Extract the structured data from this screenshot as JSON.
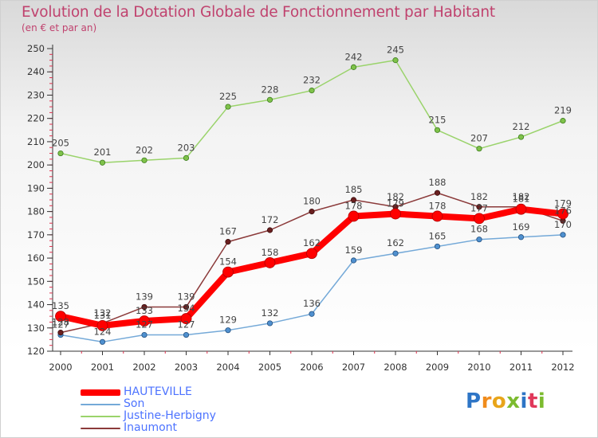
{
  "title": "Evolution de la Dotation Globale de Fonctionnement par Habitant",
  "subtitle": "(en € et par an)",
  "logo": {
    "letters": [
      "P",
      "r",
      "o",
      "x",
      "i",
      "t",
      "i"
    ],
    "colors": [
      "#2e75c6",
      "#f08c1c",
      "#e8a51a",
      "#7cbb2f",
      "#2e75c6",
      "#e0385a",
      "#7cbb2f"
    ]
  },
  "chart_data": {
    "type": "line",
    "categories": [
      "2000",
      "2001",
      "2002",
      "2003",
      "2004",
      "2005",
      "2006",
      "2007",
      "2008",
      "2009",
      "2010",
      "2011",
      "2012"
    ],
    "ylim": [
      120,
      250
    ],
    "yticks": [
      120,
      130,
      140,
      150,
      160,
      170,
      180,
      190,
      200,
      210,
      220,
      230,
      240,
      250
    ],
    "grid": false,
    "legend_position": "bottom-left",
    "series": [
      {
        "name": "HAUTEVILLE",
        "color": "#ff0000",
        "values": [
          135,
          131,
          133,
          134,
          154,
          158,
          162,
          178,
          179,
          178,
          177,
          181,
          179
        ]
      },
      {
        "name": "Son",
        "color": "#74a9d8",
        "values": [
          127,
          124,
          127,
          127,
          129,
          132,
          136,
          159,
          162,
          165,
          168,
          169,
          170
        ]
      },
      {
        "name": "Justine-Herbigny",
        "color": "#9ad36b",
        "values": [
          205,
          201,
          202,
          203,
          225,
          228,
          232,
          242,
          245,
          215,
          207,
          212,
          219
        ]
      },
      {
        "name": "Inaumont",
        "color": "#8b3a3a",
        "values": [
          128,
          132,
          139,
          139,
          167,
          172,
          180,
          185,
          182,
          188,
          182,
          182,
          176
        ]
      }
    ]
  }
}
